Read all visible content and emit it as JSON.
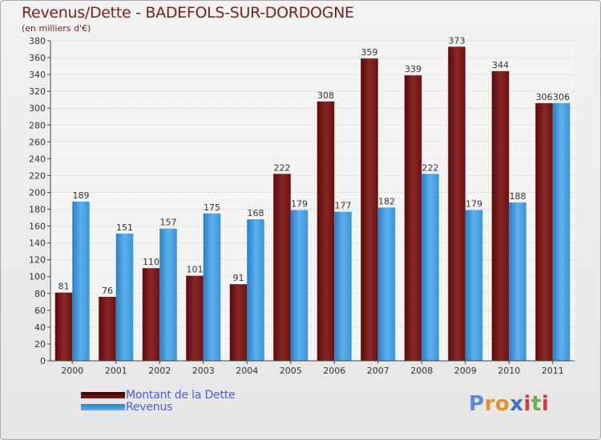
{
  "chart_data": {
    "type": "bar",
    "title": "Revenus/Dette - BADEFOLS-SUR-DORDOGNE",
    "subtitle": "(en milliers d'€)",
    "xlabel": "",
    "ylabel": "",
    "ylim": [
      0,
      380
    ],
    "ytick_step": 20,
    "grid": true,
    "categories": [
      "2000",
      "2001",
      "2002",
      "2003",
      "2004",
      "2005",
      "2006",
      "2007",
      "2008",
      "2009",
      "2010",
      "2011"
    ],
    "series": [
      {
        "name": "Montant de la Dette",
        "color": "#6e1414",
        "values": [
          81,
          76,
          110,
          101,
          91,
          222,
          308,
          359,
          339,
          373,
          344,
          306
        ]
      },
      {
        "name": "Revenus",
        "color": "#3d9be0",
        "values": [
          189,
          151,
          157,
          175,
          168,
          179,
          177,
          182,
          222,
          179,
          188,
          306
        ]
      }
    ],
    "legend_position": "bottom-left"
  },
  "logo": {
    "letters": [
      "P",
      "r",
      "o",
      "x",
      "i",
      "t",
      "i"
    ],
    "colors": [
      "#5b8ad6",
      "#e8922e",
      "#e8922e",
      "#3b6fd4",
      "#d63a3a",
      "#6ab04c",
      "#d63a3a"
    ]
  }
}
